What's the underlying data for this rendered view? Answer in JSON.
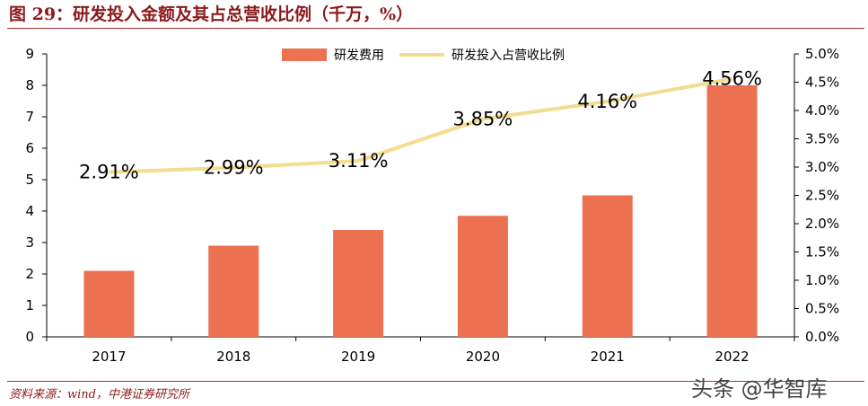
{
  "header": {
    "title": "图 29：研发投入金额及其占总营收比例（千万，%）"
  },
  "footer": {
    "source": "资料来源：wind，中港证券研究所",
    "watermark": "头条 @华智库"
  },
  "chart_data": {
    "type": "bar",
    "categories": [
      "2017",
      "2018",
      "2019",
      "2020",
      "2021",
      "2022"
    ],
    "series": [
      {
        "name": "研发费用",
        "type": "bar",
        "axis": "left",
        "values": [
          2.1,
          2.9,
          3.4,
          3.85,
          4.5,
          8.0
        ],
        "color": "#ec7150"
      },
      {
        "name": "研发投入占营收比例",
        "type": "line",
        "axis": "right",
        "values": [
          2.91,
          2.99,
          3.11,
          3.85,
          4.16,
          4.56
        ],
        "color": "#f2dc8e"
      }
    ],
    "data_labels": [
      "2.91%",
      "2.99%",
      "3.11%",
      "3.85%",
      "4.16%",
      "4.56%"
    ],
    "y_left": {
      "min": 0,
      "max": 9,
      "step": 1,
      "ticks": [
        "0",
        "1",
        "2",
        "3",
        "4",
        "5",
        "6",
        "7",
        "8",
        "9"
      ]
    },
    "y_right": {
      "min": 0,
      "max": 5,
      "step": 0.5,
      "ticks": [
        "0.0%",
        "0.5%",
        "1.0%",
        "1.5%",
        "2.0%",
        "2.5%",
        "3.0%",
        "3.5%",
        "4.0%",
        "4.5%",
        "5.0%"
      ]
    },
    "legend": {
      "position": "top-center",
      "entries": [
        "研发费用",
        "研发投入占营收比例"
      ]
    },
    "title": "",
    "xlabel": "",
    "ylabel": ""
  }
}
